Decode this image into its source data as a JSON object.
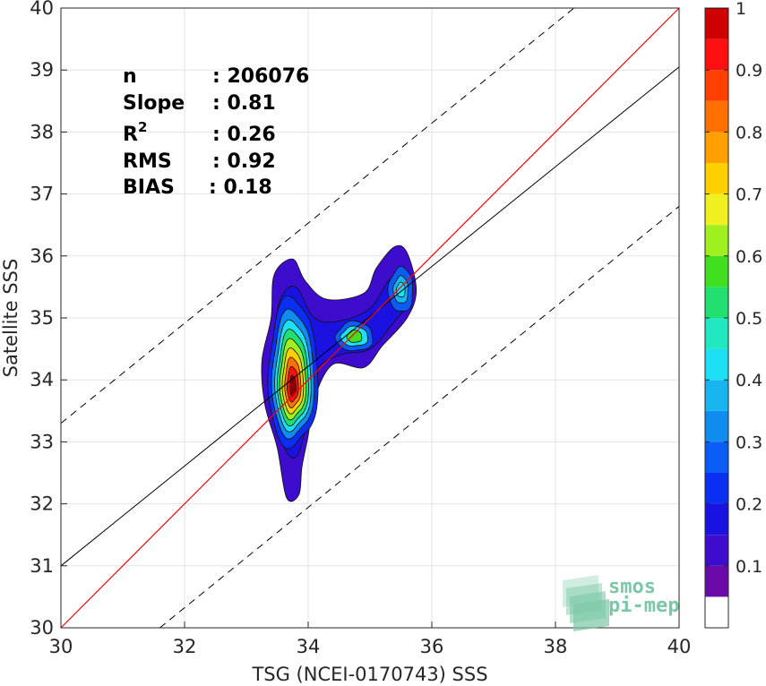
{
  "chart_data": {
    "type": "contour",
    "xlabel": "TSG (NCEI-0170743) SSS",
    "ylabel": "Satellite SSS",
    "xlim": [
      30,
      40
    ],
    "ylim": [
      30,
      40
    ],
    "xticks": [
      30,
      32,
      34,
      36,
      38,
      40
    ],
    "yticks": [
      30,
      31,
      32,
      33,
      34,
      35,
      36,
      37,
      38,
      39,
      40
    ],
    "grid": true,
    "stats": [
      {
        "label": "n",
        "value": ": 206076"
      },
      {
        "label": "Slope",
        "value": ": 0.81"
      },
      {
        "label": "R",
        "sup": "2",
        "value": ": 0.26"
      },
      {
        "label": "RMS",
        "value": ": 0.92"
      },
      {
        "label": "BIAS",
        "value": ": 0.18"
      }
    ],
    "identity_line": {
      "color": "#ff0000",
      "points": [
        [
          30,
          30
        ],
        [
          40,
          40
        ]
      ]
    },
    "regression_line": {
      "color": "#000000",
      "points": [
        [
          30,
          31.0
        ],
        [
          40,
          39.05
        ]
      ]
    },
    "dashed_bounds": [
      {
        "points": [
          [
            30,
            33.3
          ],
          [
            38.3,
            40
          ]
        ]
      },
      {
        "points": [
          [
            31.6,
            30
          ],
          [
            40,
            36.8
          ]
        ]
      }
    ],
    "density_peaks": [
      {
        "x": 33.75,
        "y": 33.9,
        "value": 1.0
      },
      {
        "x": 34.75,
        "y": 34.7,
        "value": 0.55
      },
      {
        "x": 35.5,
        "y": 35.45,
        "value": 0.4
      }
    ],
    "colorbar": {
      "min": 0,
      "max": 1,
      "ticks": [
        "0.1",
        "0.2",
        "0.3",
        "0.4",
        "0.5",
        "0.6",
        "0.7",
        "0.8",
        "0.9",
        "1"
      ],
      "tick_values": [
        0.1,
        0.2,
        0.3,
        0.4,
        0.5,
        0.6,
        0.7,
        0.8,
        0.9,
        1.0
      ],
      "levels": [
        0,
        0.05,
        0.1,
        0.15,
        0.2,
        0.25,
        0.3,
        0.35,
        0.4,
        0.45,
        0.5,
        0.55,
        0.6,
        0.65,
        0.7,
        0.75,
        0.8,
        0.85,
        0.9,
        0.95,
        1.0
      ],
      "colors": [
        "#ffffff",
        "#6a0aa8",
        "#3d0ccc",
        "#1a12e0",
        "#0a2ef2",
        "#0a5cf5",
        "#0f8cf0",
        "#18b4f0",
        "#1ee0f5",
        "#20e8c0",
        "#22e070",
        "#40e020",
        "#a0f020",
        "#f0f020",
        "#ffd000",
        "#ffa000",
        "#ff7000",
        "#ff4000",
        "#ff1010",
        "#d00000",
        "#8c0000"
      ]
    }
  },
  "logo": {
    "line1": "smos",
    "line2": "pi-mep",
    "color": "#7cc8a6"
  }
}
